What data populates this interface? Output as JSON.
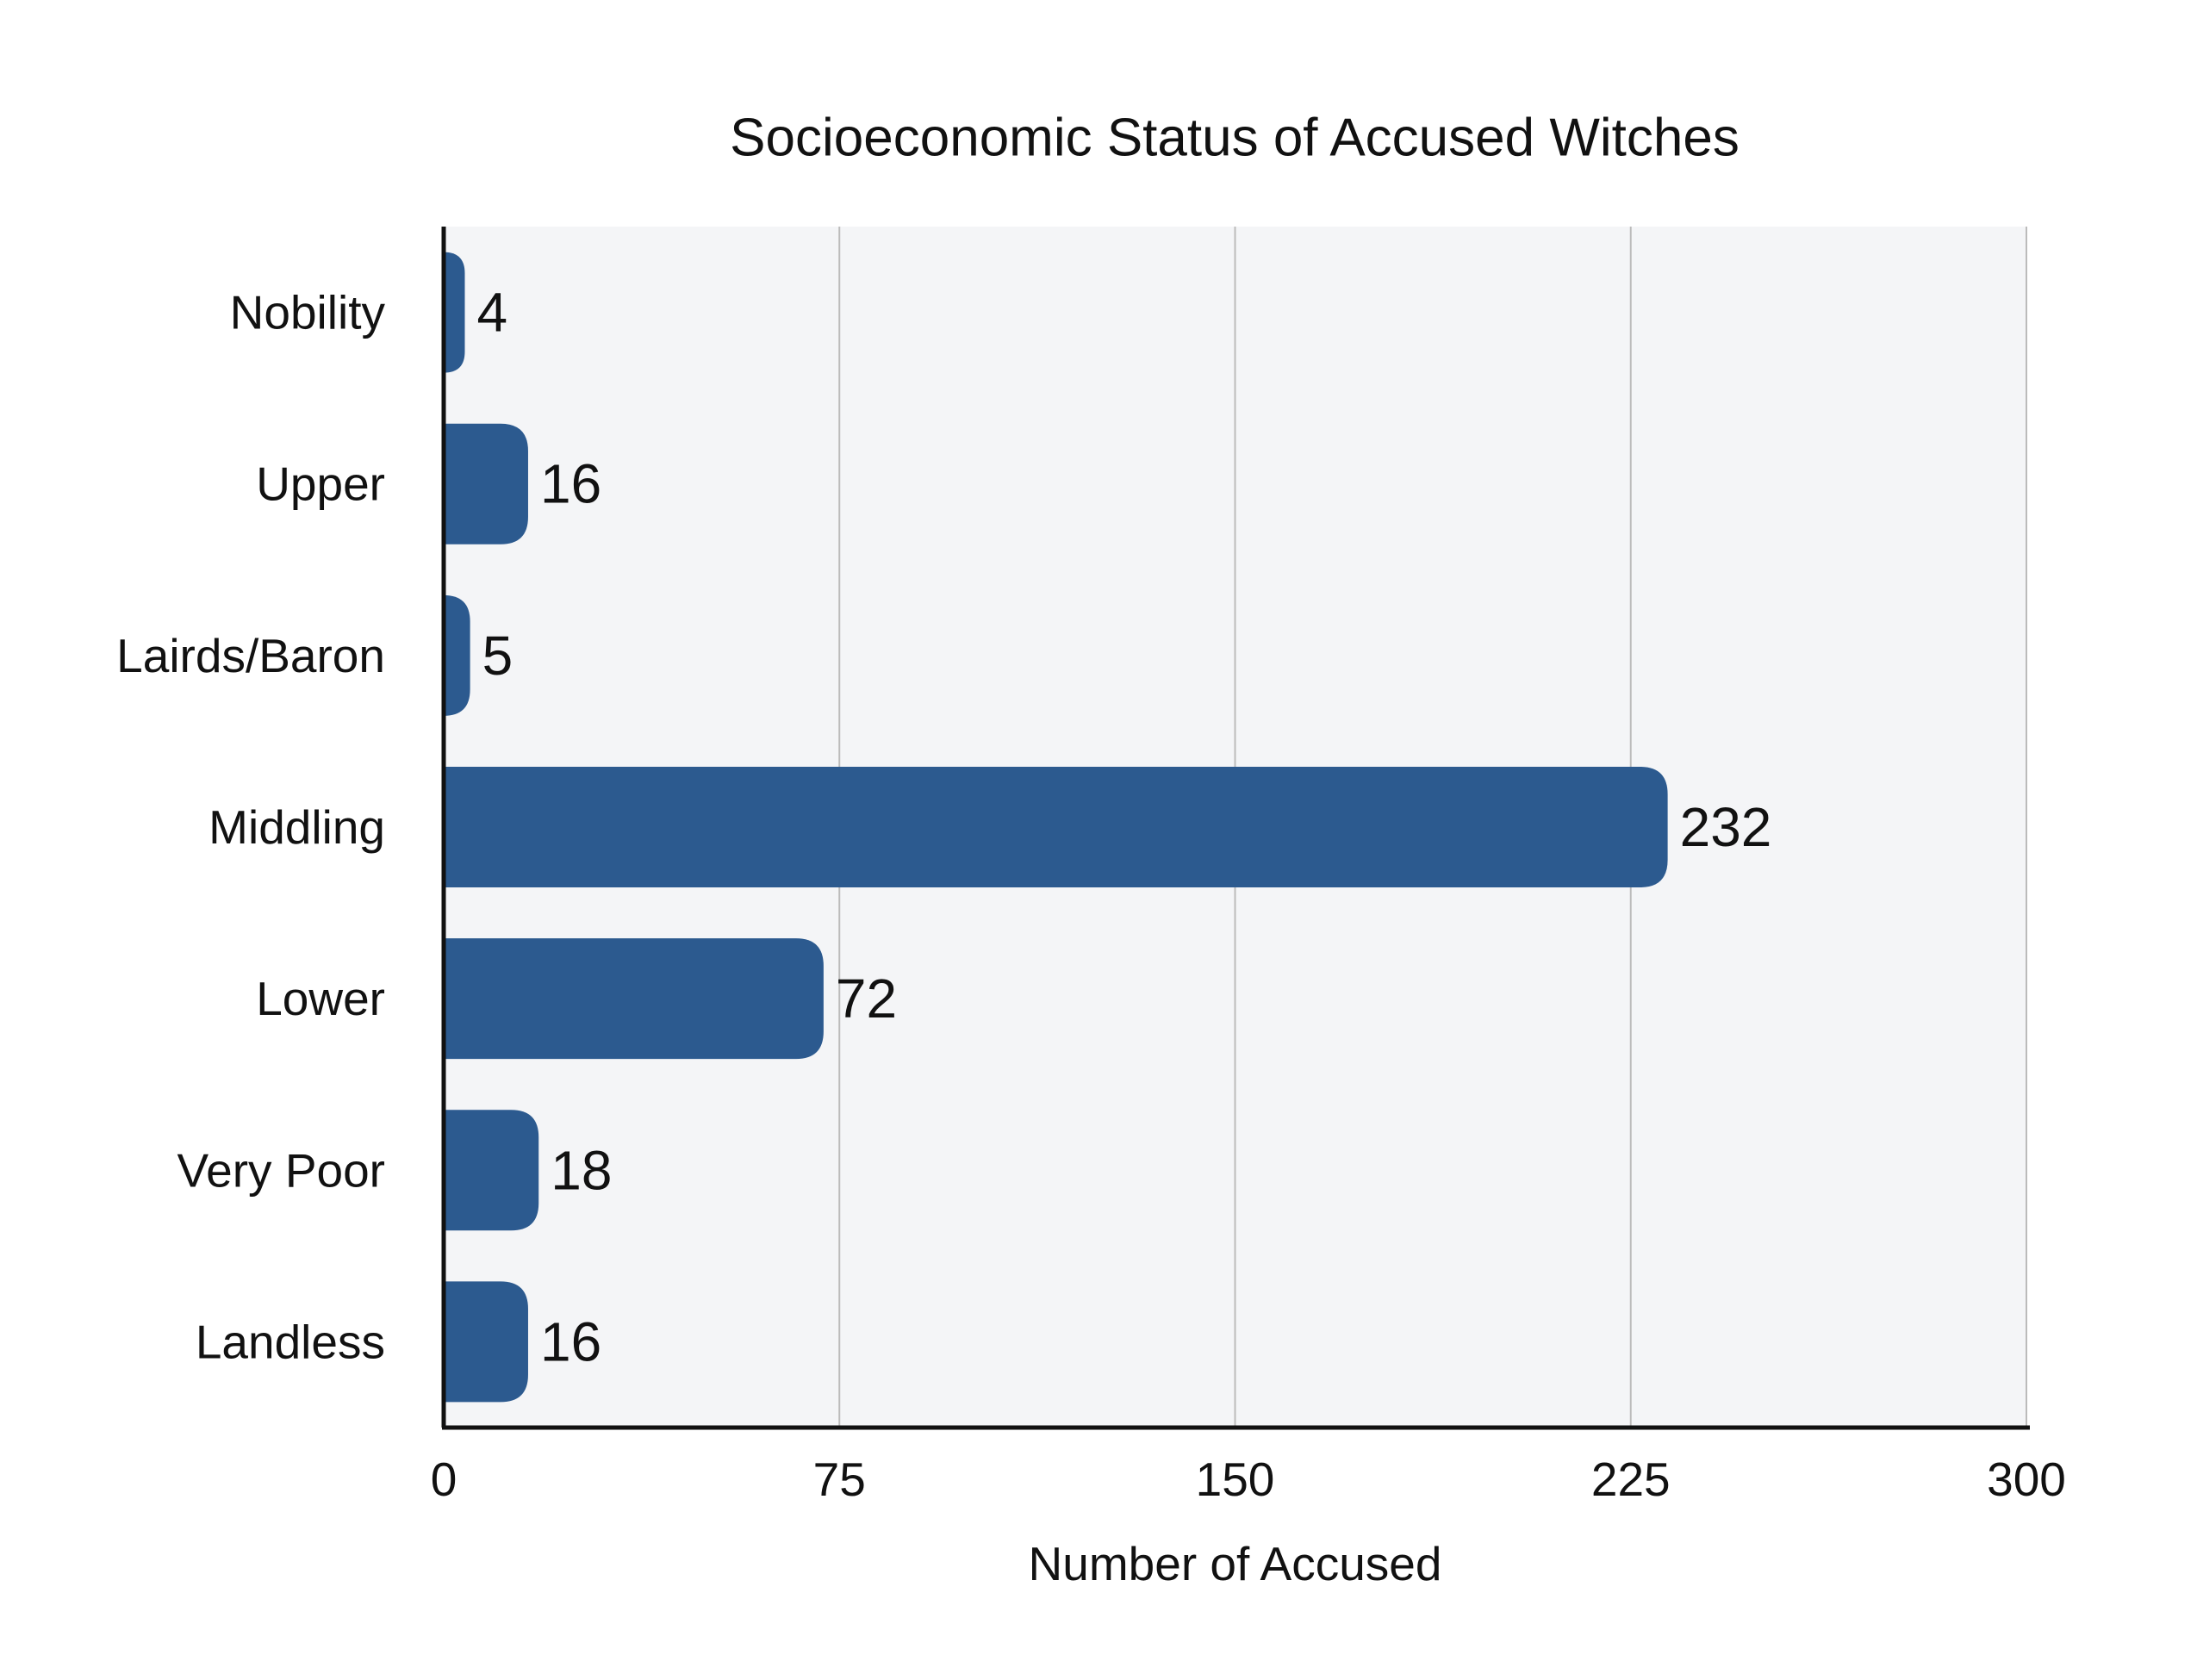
{
  "chart_data": {
    "type": "bar",
    "orientation": "horizontal",
    "title": "Socioeconomic Status of Accused Witches",
    "xlabel": "Number of Accused",
    "ylabel": "",
    "categories": [
      "Nobility",
      "Upper",
      "Lairds/Baron",
      "Middling",
      "Lower",
      "Very Poor",
      "Landless"
    ],
    "values": [
      4,
      16,
      5,
      232,
      72,
      18,
      16
    ],
    "xlim": [
      0,
      300
    ],
    "xticks": [
      0,
      75,
      150,
      225,
      300
    ],
    "grid": "vertical",
    "legend": "none",
    "colors": {
      "bar": "#2c5a8f",
      "plot_background": "#f4f5f7",
      "grid": "#bbbbbb",
      "axis": "#111111"
    }
  }
}
